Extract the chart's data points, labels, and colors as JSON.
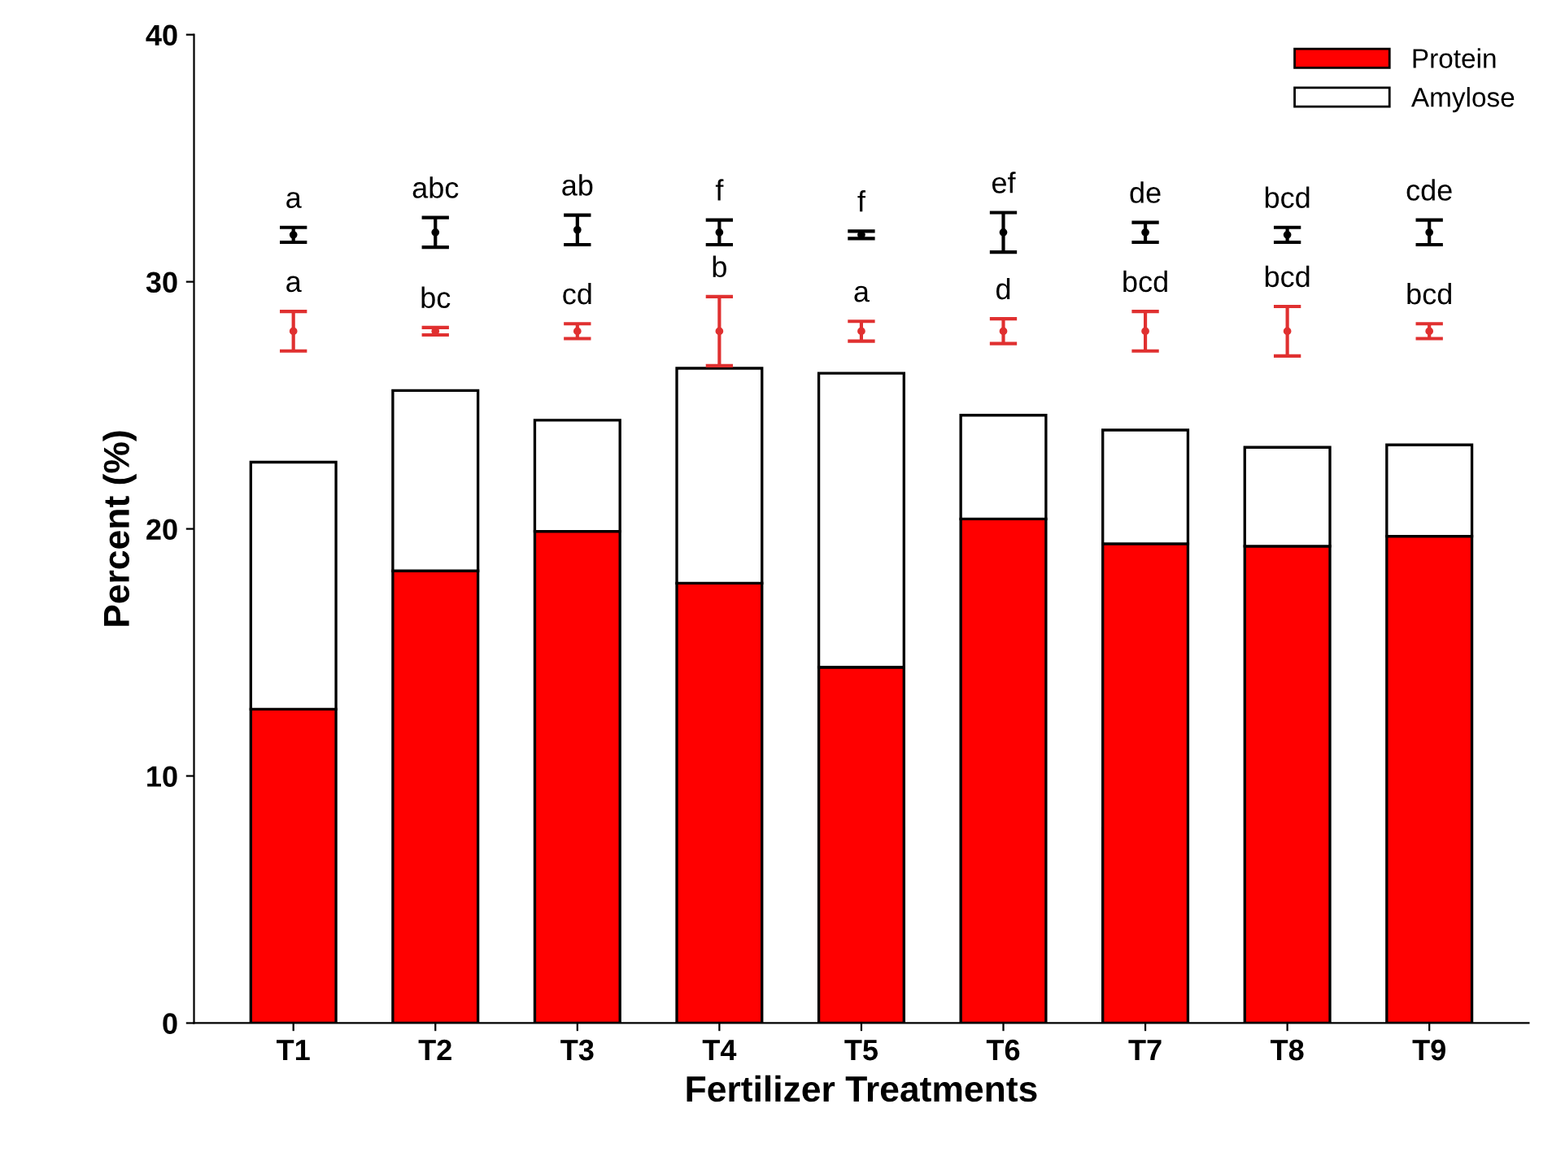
{
  "chart_data": {
    "type": "bar",
    "stacked": true,
    "xlabel": "Fertilizer Treatments",
    "ylabel": "Percent (%)",
    "categories": [
      "T1",
      "T2",
      "T3",
      "T4",
      "T5",
      "T6",
      "T7",
      "T8",
      "T9"
    ],
    "series": [
      {
        "name": "Protein",
        "color": "#ff0000",
        "values": [
          12.7,
          18.3,
          19.9,
          17.8,
          14.4,
          20.4,
          19.4,
          19.3,
          19.7
        ]
      },
      {
        "name": "Amylose",
        "color": "#ffffff",
        "values": [
          10.0,
          7.3,
          4.5,
          8.7,
          11.9,
          4.2,
          4.6,
          4.0,
          3.7
        ]
      },
      {
        "type": "scatter",
        "marker": "circle",
        "color": "#000000",
        "x": [
          "T1",
          "T2",
          "T3",
          "T4",
          "T5",
          "T6",
          "T7",
          "T8",
          "T9"
        ],
        "values": [
          31.9,
          32.0,
          32.1,
          32.0,
          31.9,
          32.0,
          32.0,
          31.9,
          32.0
        ],
        "errors": [
          0.3,
          0.6,
          0.6,
          0.5,
          0.15,
          0.8,
          0.4,
          0.3,
          0.5
        ],
        "value_labels": [
          "a",
          "abc",
          "ab",
          "f",
          "f",
          "ef",
          "de",
          "bcd",
          "cde"
        ]
      },
      {
        "type": "scatter",
        "marker": "circle",
        "color": "#e03030",
        "x": [
          "T1",
          "T2",
          "T3",
          "T4",
          "T5",
          "T6",
          "T7",
          "T8",
          "T9"
        ],
        "values": [
          28.0,
          28.0,
          28.0,
          28.0,
          28.0,
          28.0,
          28.0,
          28.0,
          28.0
        ],
        "errors": [
          0.8,
          0.15,
          0.3,
          1.4,
          0.4,
          0.5,
          0.8,
          1.0,
          0.3
        ],
        "value_labels": [
          "a",
          "bc",
          "cd",
          "b",
          "a",
          "d",
          "bcd",
          "bcd",
          "bcd"
        ]
      }
    ],
    "ylim": [
      0,
      40
    ],
    "yticks": [
      0,
      10,
      20,
      30,
      40
    ],
    "grid": false,
    "legend": "top right"
  }
}
